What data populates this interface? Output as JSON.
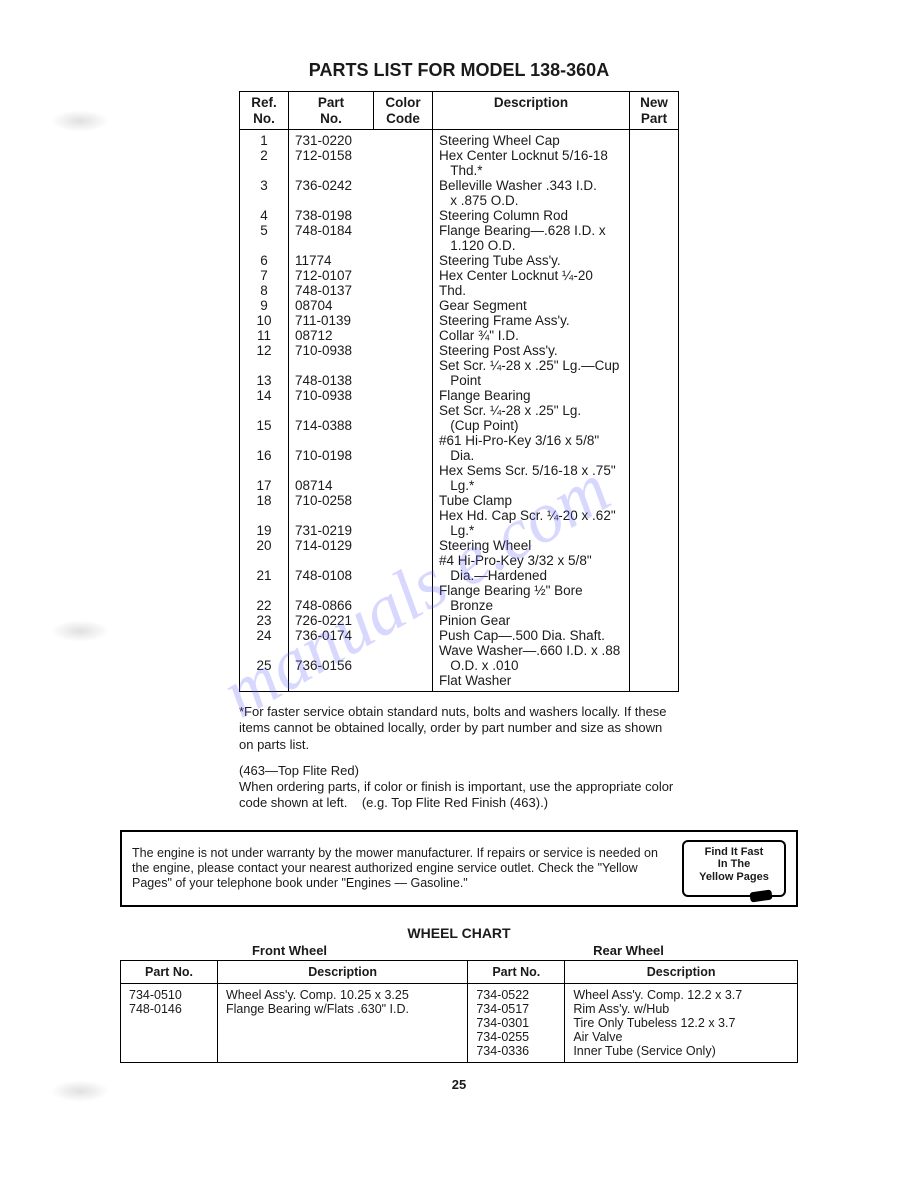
{
  "title": "PARTS LIST FOR MODEL 138-360A",
  "watermark": "manuals   e.com",
  "parts_table": {
    "headers": {
      "ref": "Ref.\nNo.",
      "part": "Part\nNo.",
      "color": "Color\nCode",
      "desc": "Description",
      "new": "New\nPart"
    },
    "rows": [
      {
        "ref": "1",
        "part": "731-0220",
        "desc": "Steering Wheel Cap"
      },
      {
        "ref": "2",
        "part": "712-0158",
        "desc": "Hex Center Locknut 5/16-18 Thd.*"
      },
      {
        "ref": "3",
        "part": "736-0242",
        "desc": "Belleville Washer .343 I.D. x .875 O.D."
      },
      {
        "ref": "4",
        "part": "738-0198",
        "desc": "Steering Column Rod"
      },
      {
        "ref": "5",
        "part": "748-0184",
        "desc": "Flange Bearing—.628 I.D. x 1.120 O.D."
      },
      {
        "ref": "6",
        "part": "11774",
        "desc": "Steering Tube Ass'y."
      },
      {
        "ref": "7",
        "part": "712-0107",
        "desc": "Hex Center Locknut ¼-20 Thd."
      },
      {
        "ref": "8",
        "part": "748-0137",
        "desc": "Gear Segment"
      },
      {
        "ref": "9",
        "part": "08704",
        "desc": "Steering Frame Ass'y."
      },
      {
        "ref": "10",
        "part": "711-0139",
        "desc": "Collar ¾\" I.D."
      },
      {
        "ref": "11",
        "part": "08712",
        "desc": "Steering Post Ass'y."
      },
      {
        "ref": "12",
        "part": "710-0938",
        "desc": "Set Scr. ¼-28 x .25\" Lg.—Cup Point"
      },
      {
        "ref": "13",
        "part": "748-0138",
        "desc": "Flange Bearing"
      },
      {
        "ref": "14",
        "part": "710-0938",
        "desc": "Set Scr. ¼-28 x .25\" Lg. (Cup Point)"
      },
      {
        "ref": "15",
        "part": "714-0388",
        "desc": "#61 Hi-Pro-Key 3/16 x 5/8\" Dia."
      },
      {
        "ref": "16",
        "part": "710-0198",
        "desc": "Hex Sems Scr. 5/16-18 x .75\" Lg.*"
      },
      {
        "ref": "17",
        "part": "08714",
        "desc": "Tube Clamp"
      },
      {
        "ref": "18",
        "part": "710-0258",
        "desc": "Hex Hd. Cap Scr. ¼-20 x .62\" Lg.*"
      },
      {
        "ref": "19",
        "part": "731-0219",
        "desc": "Steering Wheel"
      },
      {
        "ref": "20",
        "part": "714-0129",
        "desc": "#4 Hi-Pro-Key 3/32 x 5/8\" Dia.—Hardened"
      },
      {
        "ref": "21",
        "part": "748-0108",
        "desc": "Flange Bearing ½\" Bore Bronze"
      },
      {
        "ref": "22",
        "part": "748-0866",
        "desc": "Pinion Gear"
      },
      {
        "ref": "23",
        "part": "726-0221",
        "desc": "Push Cap—.500 Dia. Shaft."
      },
      {
        "ref": "24",
        "part": "736-0174",
        "desc": "Wave Washer—.660 I.D. x .88 O.D. x .010"
      },
      {
        "ref": "25",
        "part": "736-0156",
        "desc": "Flat Washer"
      }
    ]
  },
  "note1": "*For faster service obtain standard nuts, bolts and washers locally. If these items cannot be obtained locally, order by part number and size as shown on parts list.",
  "note2a": "(463—Top Flite Red)",
  "note2b": "When ordering parts, if color or finish is important, use the appropriate color code shown at left.    (e.g. Top Flite Red Finish (463).)",
  "engine_note": "The engine is not under warranty by the mower manufacturer. If repairs or service is needed on the engine, please contact your nearest authorized engine service outlet. Check the \"Yellow Pages\" of your telephone book under \"Engines — Gasoline.\"",
  "yellow_badge": "Find It Fast\nIn The\nYellow Pages",
  "wheel_chart": {
    "title": "WHEEL CHART",
    "front_label": "Front Wheel",
    "rear_label": "Rear Wheel",
    "headers": {
      "part": "Part No.",
      "desc": "Description"
    },
    "front": [
      {
        "part": "734-0510",
        "desc": "Wheel Ass'y. Comp. 10.25 x 3.25"
      },
      {
        "part": "748-0146",
        "desc": "Flange Bearing w/Flats .630\" I.D."
      }
    ],
    "rear": [
      {
        "part": "734-0522",
        "desc": "Wheel Ass'y. Comp. 12.2 x 3.7"
      },
      {
        "part": "734-0517",
        "desc": "Rim Ass'y. w/Hub"
      },
      {
        "part": "734-0301",
        "desc": "Tire Only Tubeless 12.2 x 3.7"
      },
      {
        "part": "734-0255",
        "desc": "Air Valve"
      },
      {
        "part": "734-0336",
        "desc": "Inner Tube (Service Only)"
      }
    ]
  },
  "page_number": "25"
}
